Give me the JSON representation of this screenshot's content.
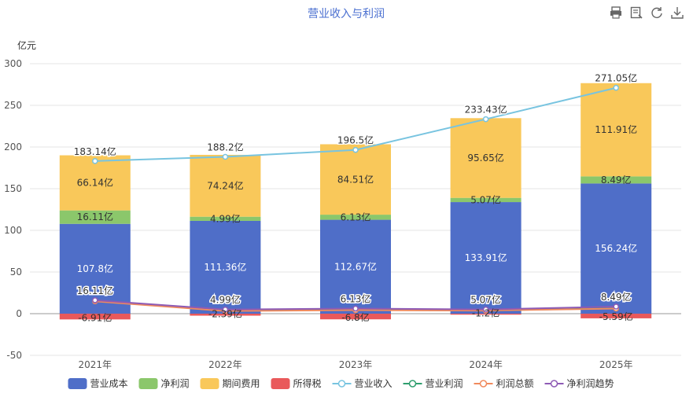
{
  "toolbox": {
    "icons": [
      "print-icon",
      "data-view-icon",
      "refresh-icon",
      "download-icon"
    ]
  },
  "chart_data": {
    "type": "bar",
    "title": "营业收入与利润",
    "ylabel": "亿元",
    "ylim": [
      -50,
      300
    ],
    "yticks": [
      "-50",
      "0",
      "50",
      "100",
      "150",
      "200",
      "250",
      "300"
    ],
    "categories": [
      "2021年",
      "2022年",
      "2023年",
      "2024年",
      "2025年"
    ],
    "stack_series": [
      {
        "name": "营业成本",
        "color": "#4f6ec8",
        "values": [
          107.8,
          111.36,
          112.67,
          133.91,
          156.24
        ],
        "labels": [
          "107.8亿",
          "111.36亿",
          "112.67亿",
          "133.91亿",
          "156.24亿"
        ]
      },
      {
        "name": "净利润",
        "color": "#8bc76b",
        "values": [
          16.11,
          4.99,
          6.13,
          5.07,
          8.49
        ],
        "labels": [
          "16.11亿",
          "4.99亿",
          "6.13亿",
          "5.07亿",
          "8.49亿"
        ]
      },
      {
        "name": "期间费用",
        "color": "#f9c85a",
        "values": [
          66.14,
          74.24,
          84.51,
          95.65,
          111.91
        ],
        "labels": [
          "66.14亿",
          "74.24亿",
          "84.51亿",
          "95.65亿",
          "111.91亿"
        ]
      },
      {
        "name": "所得税",
        "color": "#e9595b",
        "values": [
          -6.91,
          -2.39,
          -6.8,
          -1.2,
          -5.59
        ],
        "labels": [
          "-6.91亿",
          "-2.39亿",
          "-6.8亿",
          "-1.2亿",
          "-5.59亿"
        ]
      }
    ],
    "line_series": [
      {
        "name": "营业收入",
        "color": "#78c4e0",
        "values": [
          183.14,
          188.2,
          196.5,
          233.43,
          271.05
        ],
        "labels": [
          "183.14亿",
          "188.2亿",
          "196.5亿",
          "233.43亿",
          "271.05亿"
        ]
      },
      {
        "name": "营业利润",
        "color": "#2f9e6e",
        "values": [
          15.2,
          3.6,
          4.5,
          3.9,
          6.4
        ]
      },
      {
        "name": "利润总额",
        "color": "#f08a5d",
        "values": [
          14.8,
          3.2,
          4.2,
          3.7,
          6.1
        ]
      },
      {
        "name": "净利润趋势",
        "color": "#8e5bb5",
        "values": [
          16.11,
          4.99,
          6.13,
          5.07,
          8.49
        ],
        "labels": [
          "16.11亿",
          "4.99亿",
          "6.13亿",
          "5.07亿",
          "8.49亿"
        ]
      }
    ],
    "legend_position": "bottom",
    "grid": true
  }
}
